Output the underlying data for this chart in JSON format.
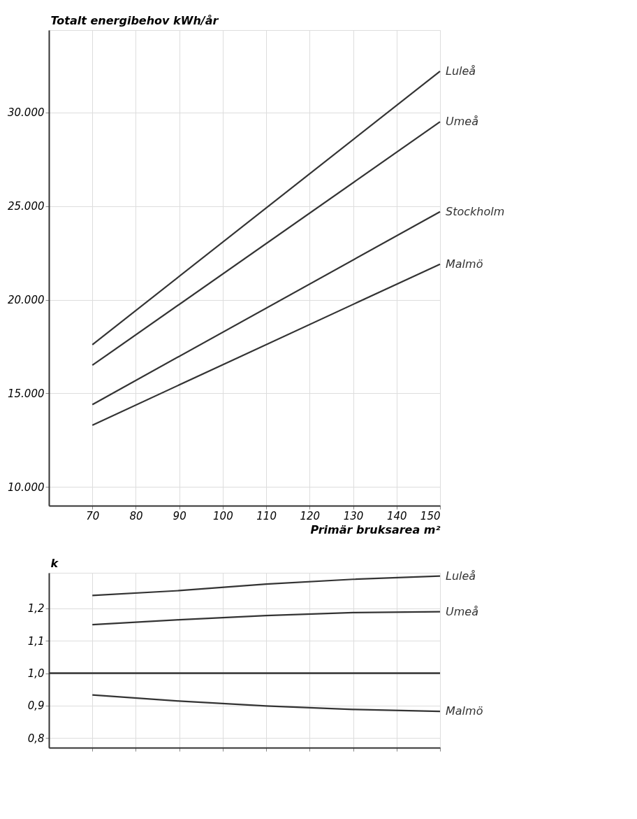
{
  "chart_data": [
    {
      "type": "line",
      "ylabel": "Totalt energibehov kWh/år",
      "xlabel": "Primär bruksarea m²",
      "xlim": [
        60,
        150
      ],
      "xticks": [
        70,
        80,
        90,
        100,
        110,
        120,
        130,
        140,
        150
      ],
      "ylim": [
        9000,
        34400
      ],
      "yticks": [
        {
          "value": 10000,
          "label": "10.000"
        },
        {
          "value": 15000,
          "label": "15.000"
        },
        {
          "value": 20000,
          "label": "20.000"
        },
        {
          "value": 25000,
          "label": "25.000"
        },
        {
          "value": 30000,
          "label": "30.000"
        }
      ],
      "grid": true,
      "marker": "none",
      "line_style": "solid",
      "x": [
        70,
        150
      ],
      "series": [
        {
          "name": "Luleå",
          "color": "#333333",
          "values": [
            17600,
            32200
          ]
        },
        {
          "name": "Umeå",
          "color": "#333333",
          "values": [
            16500,
            29500
          ]
        },
        {
          "name": "Stockholm",
          "color": "#333333",
          "values": [
            14400,
            24700
          ]
        },
        {
          "name": "Malmö",
          "color": "#333333",
          "values": [
            13300,
            21900
          ]
        }
      ]
    },
    {
      "type": "line",
      "ylabel": "k",
      "xlim": [
        60,
        150
      ],
      "xticks": [
        70,
        80,
        90,
        100,
        110,
        120,
        130,
        140,
        150
      ],
      "ylim": [
        0.77,
        1.31
      ],
      "yticks": [
        {
          "value": 0.8,
          "label": "0,8"
        },
        {
          "value": 0.9,
          "label": "0,9"
        },
        {
          "value": 1.0,
          "label": "1,0"
        },
        {
          "value": 1.1,
          "label": "1,1"
        },
        {
          "value": 1.2,
          "label": "1,2"
        }
      ],
      "grid": true,
      "marker": "none",
      "line_style": "solid",
      "tick_labels": "y",
      "x": [
        70,
        90,
        110,
        130,
        150
      ],
      "ref_lines": [
        {
          "axis": "y",
          "value": 1.0,
          "color": "#333333"
        }
      ],
      "series": [
        {
          "name": "Luleå",
          "color": "#333333",
          "values": [
            1.24,
            1.255,
            1.275,
            1.29,
            1.3
          ]
        },
        {
          "name": "Umeå",
          "color": "#333333",
          "values": [
            1.15,
            1.165,
            1.178,
            1.187,
            1.19
          ]
        },
        {
          "name": "Malmö",
          "color": "#333333",
          "values": [
            0.933,
            0.914,
            0.899,
            0.888,
            0.882
          ]
        }
      ]
    }
  ]
}
